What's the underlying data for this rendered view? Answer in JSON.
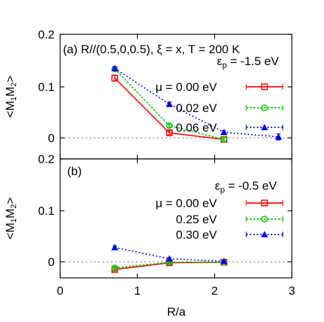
{
  "chart_data": [
    {
      "type": "line",
      "panel": "(a)",
      "annotation": "(a) R//(0.5,0,0.5), ξ = x, T = 200 K",
      "energy_label": "εp = -1.5 eV",
      "ylabel": "<M1M2>",
      "xlabel": "",
      "xlim": [
        0,
        3
      ],
      "ylim": [
        -0.03,
        0.2
      ],
      "yticks": [
        "0",
        "0.1",
        "0.2"
      ],
      "series": [
        {
          "name": "μ = 0.00 eV",
          "color": "#ff0000",
          "marker": "square",
          "x": [
            0.707,
            1.414,
            2.121
          ],
          "y": [
            0.117,
            0.01,
            -0.003
          ],
          "err": [
            0.006,
            0.004,
            0.003
          ]
        },
        {
          "name": "0.02 eV",
          "color": "#00cc00",
          "marker": "circle",
          "x": [
            0.707,
            1.414,
            2.121
          ],
          "y": [
            0.135,
            0.024,
            -0.003
          ],
          "err": [
            0.003,
            0.003,
            0.003
          ]
        },
        {
          "name": "0.06 eV",
          "color": "#0000ff",
          "marker": "triangle",
          "x": [
            0.707,
            1.414,
            2.121,
            2.828
          ],
          "y": [
            0.136,
            0.066,
            0.011,
            0.002
          ],
          "err": [
            0.003,
            0.004,
            0.003,
            0.006
          ]
        }
      ]
    },
    {
      "type": "line",
      "panel": "(b)",
      "annotation": "(b)",
      "energy_label": "εp = -0.5 eV",
      "ylabel": "<M1M2>",
      "xlabel": "R/a",
      "xlim": [
        0,
        3
      ],
      "ylim": [
        -0.03,
        0.2
      ],
      "xticks": [
        "0",
        "1",
        "2",
        "3"
      ],
      "yticks": [
        "0",
        "0.1",
        "0.2"
      ],
      "series": [
        {
          "name": "μ = 0.00 eV",
          "color": "#ff0000",
          "marker": "square",
          "x": [
            0.707,
            1.414,
            2.121
          ],
          "y": [
            -0.015,
            -0.002,
            -0.001
          ],
          "err": [
            0.003,
            0.002,
            0.002
          ]
        },
        {
          "name": "0.25 eV",
          "color": "#00cc00",
          "marker": "circle",
          "x": [
            0.707,
            1.414,
            2.121
          ],
          "y": [
            -0.012,
            -0.001,
            -0.001
          ],
          "err": [
            0.003,
            0.002,
            0.002
          ]
        },
        {
          "name": "0.30 eV",
          "color": "#0000ff",
          "marker": "triangle",
          "x": [
            0.707,
            1.414,
            2.121
          ],
          "y": [
            0.028,
            0.006,
            0.001
          ],
          "err": [
            0.003,
            0.002,
            0.002
          ]
        }
      ]
    }
  ]
}
